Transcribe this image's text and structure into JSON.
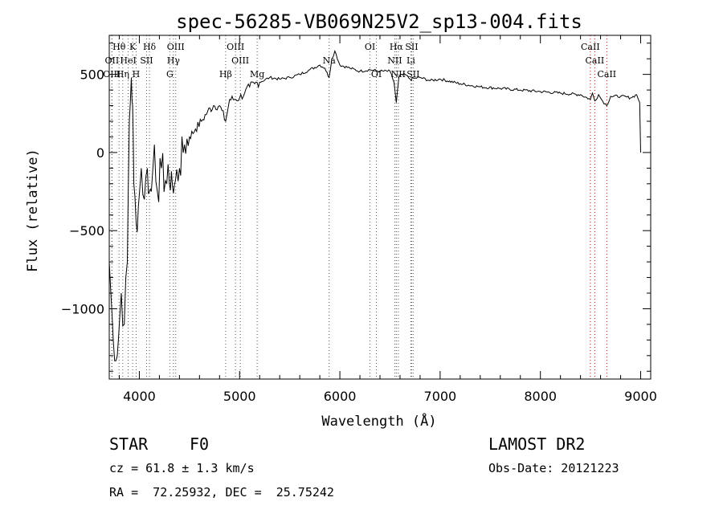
{
  "chart_data": {
    "type": "line",
    "title": "spec-56285-VB069N25V2_sp13-004.fits",
    "xlabel": "Wavelength (Å)",
    "ylabel": "Flux (relative)",
    "xlim": [
      3700,
      9100
    ],
    "ylim": [
      -1450,
      750
    ],
    "x_ticks": [
      4000,
      5000,
      6000,
      7000,
      8000,
      9000
    ],
    "y_ticks": [
      -1000,
      -500,
      0,
      500
    ],
    "grid": false,
    "series": [
      {
        "x": [
          3700,
          3740,
          3780,
          3820,
          3850,
          3880,
          3900,
          3920,
          3933,
          3945,
          3968,
          3990,
          4020,
          4050,
          4080,
          4101,
          4120,
          4150,
          4180,
          4220,
          4260,
          4300,
          4320,
          4340,
          4360,
          4400,
          4450,
          4500,
          4560,
          4620,
          4680,
          4740,
          4800,
          4861,
          4900,
          4950,
          5000,
          5050,
          5100,
          5150,
          5200,
          5300,
          5400,
          5500,
          5600,
          5700,
          5800,
          5850,
          5893,
          5920,
          5950,
          6000,
          6100,
          6200,
          6300,
          6400,
          6500,
          6540,
          6563,
          6590,
          6650,
          6700,
          6800,
          6900,
          7000,
          7200,
          7400,
          7600,
          7800,
          8000,
          8200,
          8400,
          8498,
          8520,
          8542,
          8580,
          8620,
          8662,
          8700,
          8800,
          8900,
          8960,
          8990,
          9000
        ],
        "y": [
          -700,
          -1200,
          -1300,
          -900,
          -1100,
          -700,
          200,
          480,
          300,
          -200,
          -450,
          -350,
          -100,
          -300,
          -100,
          -250,
          -250,
          50,
          -250,
          -100,
          -180,
          -200,
          -120,
          -260,
          -180,
          -100,
          50,
          100,
          150,
          200,
          260,
          300,
          300,
          200,
          340,
          340,
          350,
          380,
          420,
          440,
          450,
          480,
          470,
          480,
          500,
          530,
          560,
          540,
          480,
          600,
          650,
          560,
          540,
          520,
          530,
          520,
          520,
          450,
          320,
          490,
          500,
          470,
          480,
          460,
          470,
          440,
          420,
          410,
          400,
          390,
          380,
          370,
          340,
          380,
          330,
          370,
          330,
          300,
          360,
          360,
          350,
          370,
          320,
          0
        ]
      }
    ],
    "lines": [
      {
        "label": "Hθ",
        "wavelength": 3798,
        "row": 0,
        "color": "#000000"
      },
      {
        "label": "K",
        "wavelength": 3933,
        "row": 0,
        "color": "#000000"
      },
      {
        "label": "Hδ",
        "wavelength": 4101,
        "row": 0,
        "color": "#000000"
      },
      {
        "label": "OIII",
        "wavelength": 4363,
        "row": 0,
        "color": "#000000"
      },
      {
        "label": "OIII",
        "wavelength": 4959,
        "row": 0,
        "color": "#000000"
      },
      {
        "label": "OI",
        "wavelength": 6300,
        "row": 0,
        "color": "#000000"
      },
      {
        "label": "Hα",
        "wavelength": 6563,
        "row": 0,
        "color": "#000000"
      },
      {
        "label": "SII",
        "wavelength": 6716,
        "row": 0,
        "color": "#000000"
      },
      {
        "label": "CaII",
        "wavelength": 8498,
        "row": 0,
        "color": "#d00000"
      },
      {
        "label": "OII",
        "wavelength": 3727,
        "row": 1,
        "color": "#000000"
      },
      {
        "label": "HeI",
        "wavelength": 3889,
        "row": 1,
        "color": "#000000"
      },
      {
        "label": "SII",
        "wavelength": 4072,
        "row": 1,
        "color": "#000000"
      },
      {
        "label": "Hγ",
        "wavelength": 4340,
        "row": 1,
        "color": "#000000"
      },
      {
        "label": "OIII",
        "wavelength": 5007,
        "row": 1,
        "color": "#000000"
      },
      {
        "label": "Na",
        "wavelength": 5893,
        "row": 1,
        "color": "#000000"
      },
      {
        "label": "NII",
        "wavelength": 6548,
        "row": 1,
        "color": "#000000"
      },
      {
        "label": "Li",
        "wavelength": 6708,
        "row": 1,
        "color": "#000000"
      },
      {
        "label": "CaII",
        "wavelength": 8542,
        "row": 1,
        "color": "#d00000"
      },
      {
        "label": "OIII",
        "wavelength": 3726,
        "row": 2,
        "color": "#000000"
      },
      {
        "label": "Hη",
        "wavelength": 3835,
        "row": 2,
        "color": "#000000"
      },
      {
        "label": "H",
        "wavelength": 3968,
        "row": 2,
        "color": "#000000"
      },
      {
        "label": "G",
        "wavelength": 4304,
        "row": 2,
        "color": "#000000"
      },
      {
        "label": "Hβ",
        "wavelength": 4861,
        "row": 2,
        "color": "#000000"
      },
      {
        "label": "Mg",
        "wavelength": 5175,
        "row": 2,
        "color": "#000000"
      },
      {
        "label": "OI",
        "wavelength": 6364,
        "row": 2,
        "color": "#000000"
      },
      {
        "label": "NII",
        "wavelength": 6583,
        "row": 2,
        "color": "#000000"
      },
      {
        "label": "SII",
        "wavelength": 6731,
        "row": 2,
        "color": "#000000"
      },
      {
        "label": "CaII",
        "wavelength": 8662,
        "row": 2,
        "color": "#d00000"
      }
    ]
  },
  "info": {
    "class_label": "STAR",
    "subclass": "F0",
    "redshift": "cz = 61.8 ± 1.3 km/s",
    "coords": "RA =  72.25932, DEC =  25.75242",
    "survey": "LAMOST DR2",
    "obs_date": "Obs-Date: 20121223"
  }
}
